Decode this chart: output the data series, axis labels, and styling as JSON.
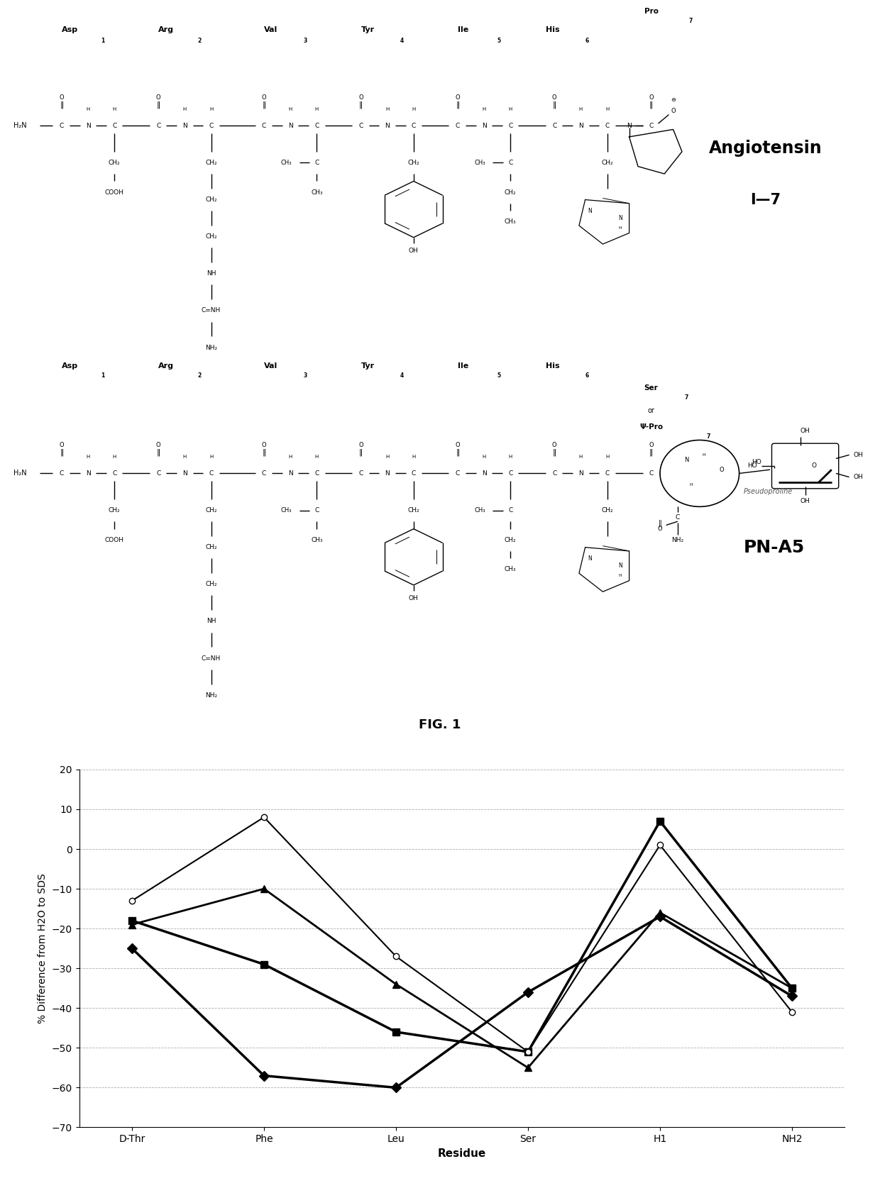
{
  "fig2": {
    "x_labels": [
      "D-Thr",
      "Phe",
      "Leu",
      "Ser",
      "H1",
      "NH2"
    ],
    "series_995": [
      -25,
      -57,
      -60,
      -36,
      -17,
      -37
    ],
    "series_1095": [
      -18,
      -29,
      -46,
      -51,
      7,
      -35
    ],
    "series_2230": [
      -19,
      -10,
      -34,
      -55,
      -16,
      -35
    ],
    "series_2300": [
      -13,
      8,
      -27,
      -51,
      1,
      -41
    ],
    "ylim": [
      -70,
      20
    ],
    "yticks": [
      -70,
      -60,
      -50,
      -40,
      -30,
      -20,
      -10,
      0,
      10,
      20
    ],
    "ylabel": "% Difference from H2O to SDS",
    "xlabel": "Residue"
  }
}
